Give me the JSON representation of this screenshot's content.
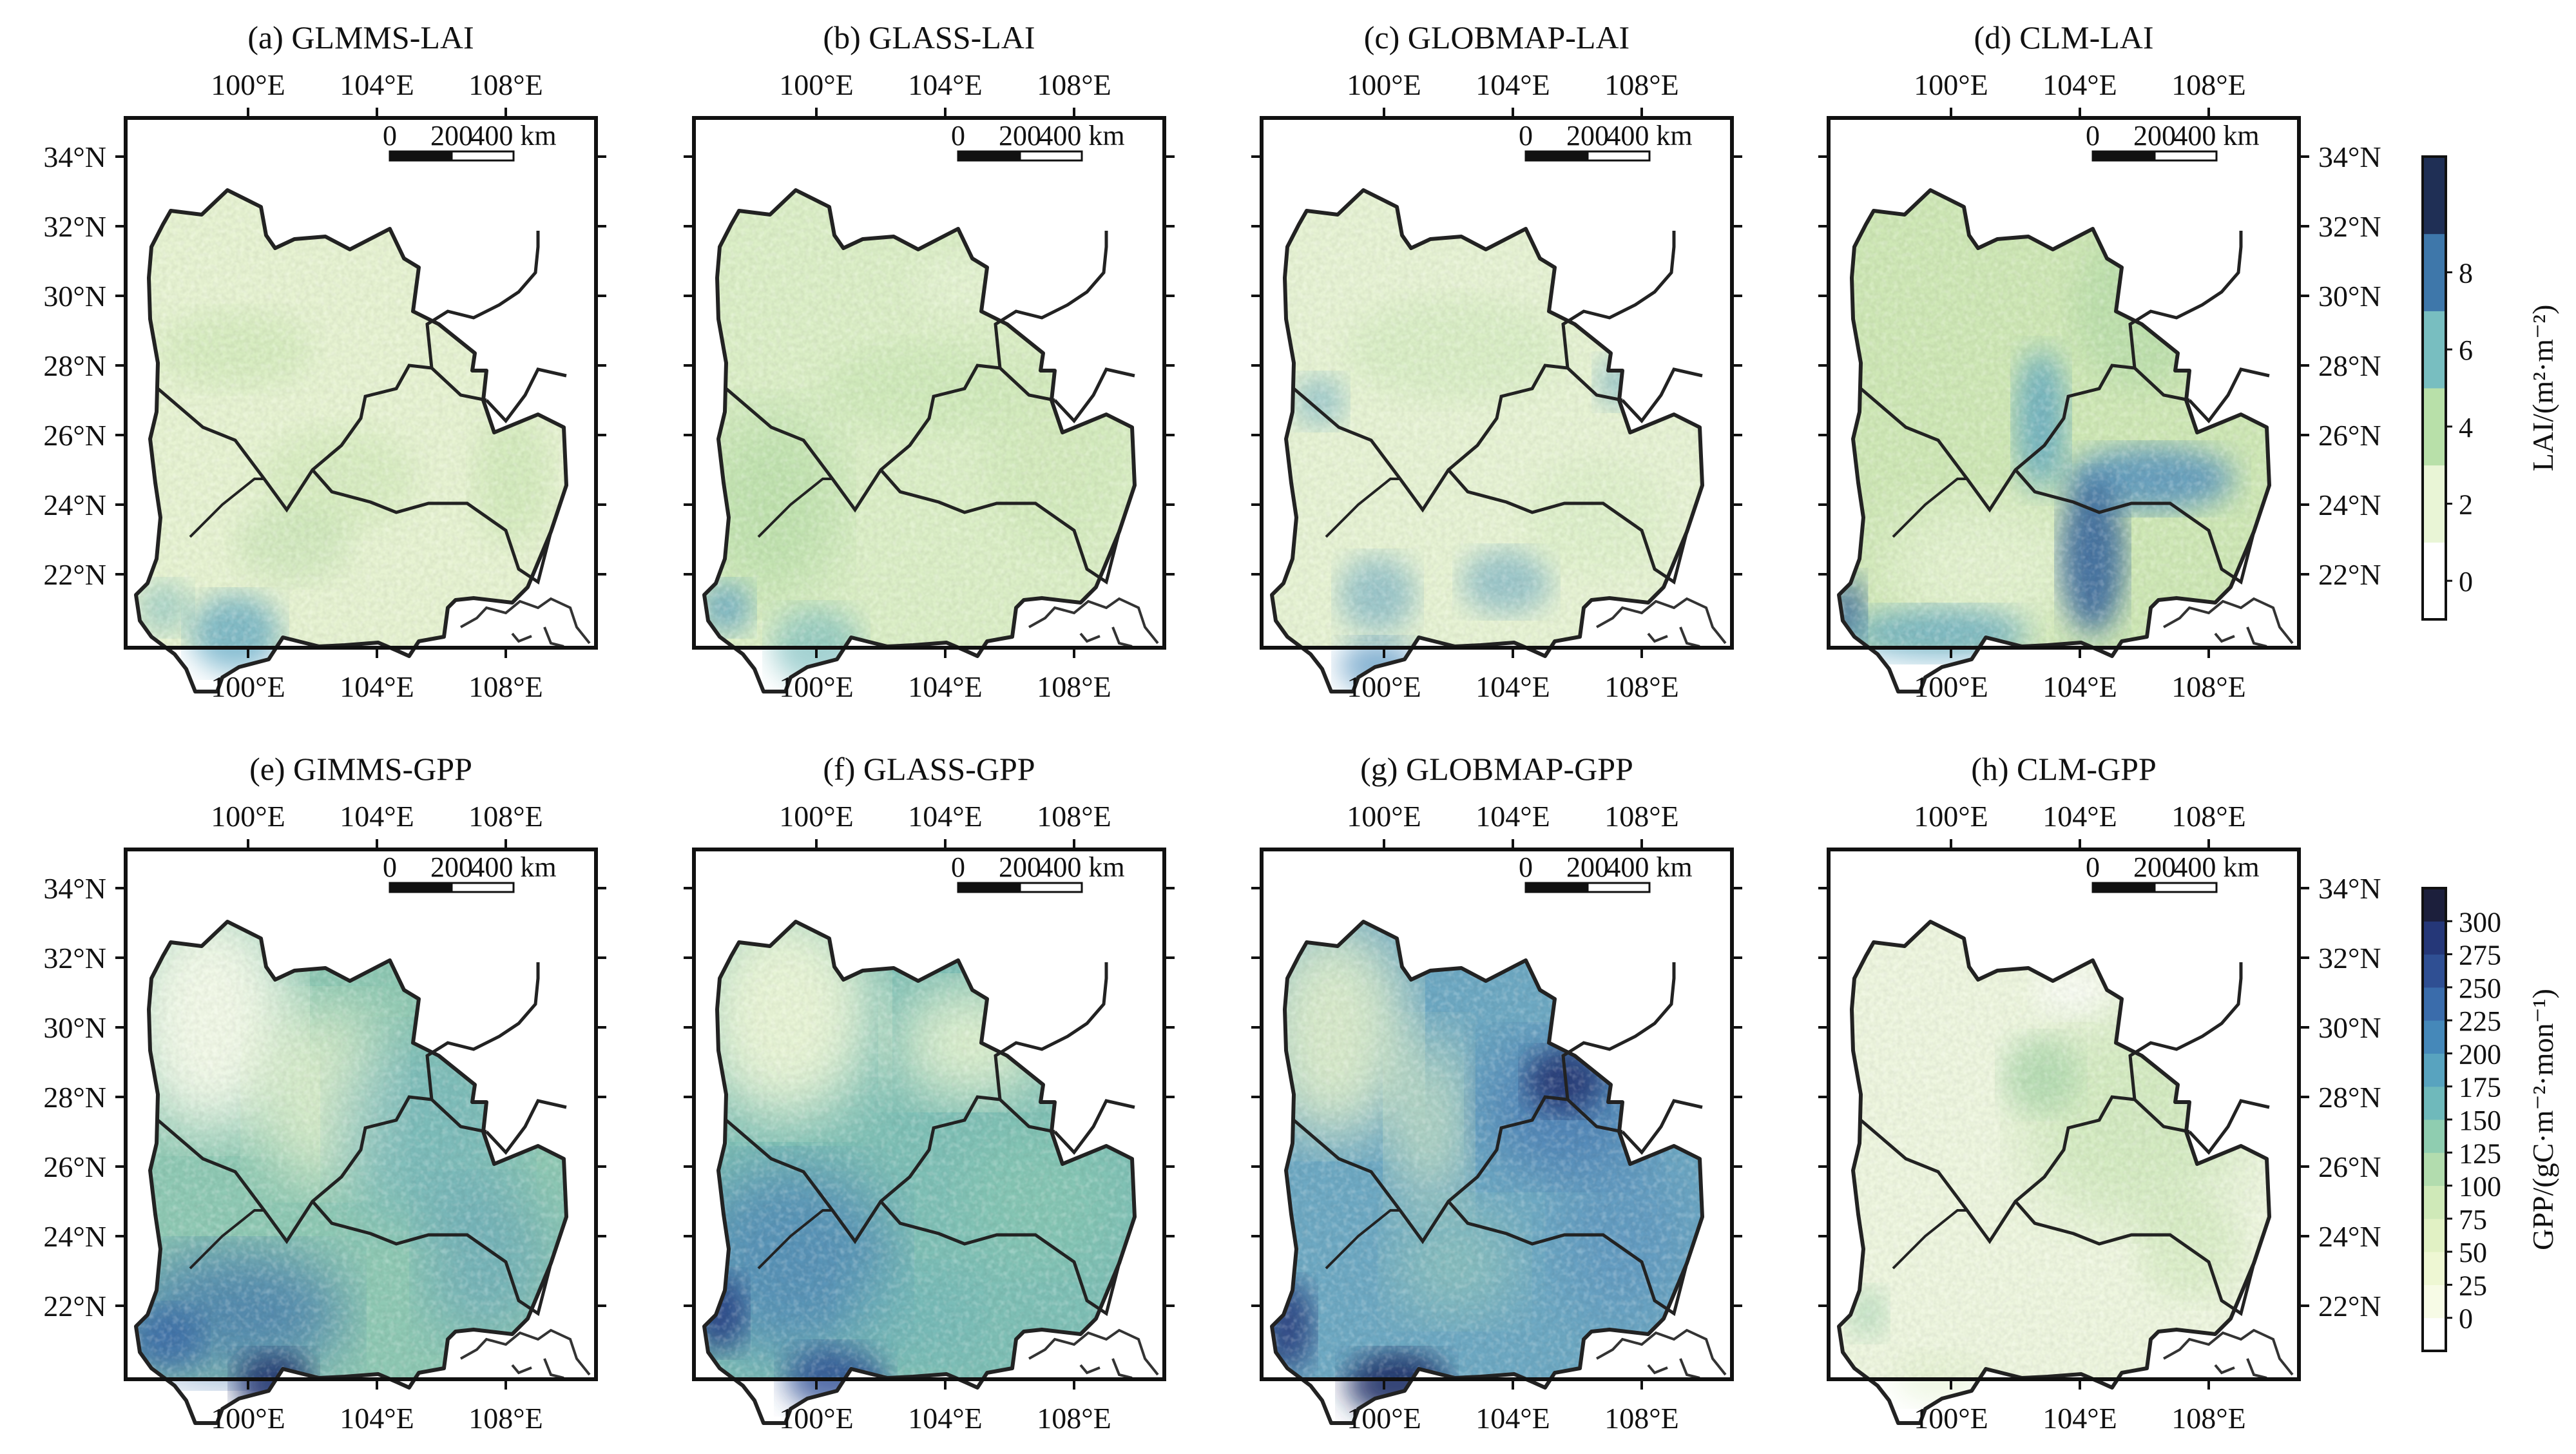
{
  "figure": {
    "rows": [
      {
        "id": "lai",
        "panels": [
          {
            "title": "(a) GLMMS-LAI",
            "style": "a"
          },
          {
            "title": "(b) GLASS-LAI",
            "style": "b"
          },
          {
            "title": "(c) GLOBMAP-LAI",
            "style": "c"
          },
          {
            "title": "(d) CLM-LAI",
            "style": "d"
          }
        ],
        "colorbar": {
          "label": "LAI/(m²·m⁻²)",
          "ticks": [
            "0",
            "2",
            "4",
            "6",
            "8"
          ],
          "colors": [
            "#ffffff",
            "#e9f5d6",
            "#b8e0a9",
            "#78bec0",
            "#3e77aa",
            "#1f2f55"
          ]
        }
      },
      {
        "id": "gpp",
        "panels": [
          {
            "title": "(e) GIMMS-GPP",
            "style": "e"
          },
          {
            "title": "(f) GLASS-GPP",
            "style": "f"
          },
          {
            "title": "(g) GLOBMAP-GPP",
            "style": "g"
          },
          {
            "title": "(h) CLM-GPP",
            "style": "h"
          }
        ],
        "colorbar": {
          "label": "GPP/(gC·m⁻²·mon⁻¹)",
          "ticks": [
            "0",
            "25",
            "50",
            "75",
            "100",
            "125",
            "150",
            "175",
            "200",
            "225",
            "250",
            "275",
            "300"
          ],
          "colors": [
            "#ffffff",
            "#f7fbe6",
            "#eef7d3",
            "#e1f1c4",
            "#cfe9b8",
            "#b2dcae",
            "#8fcdb0",
            "#6fb9bb",
            "#58a3bf",
            "#4588b9",
            "#3a6cab",
            "#2f4f93",
            "#253778",
            "#1c1f3c"
          ]
        }
      }
    ],
    "axes": {
      "lon_ticks": [
        "100°E",
        "104°E",
        "108°E"
      ],
      "lat_ticks": [
        "34°N",
        "32°N",
        "30°N",
        "28°N",
        "26°N",
        "24°N",
        "22°N"
      ]
    },
    "scalebar": {
      "labels": [
        "0",
        "200",
        "400 km"
      ]
    },
    "colors": {
      "boundary": "#222222",
      "frame": "#111111",
      "background": "#ffffff"
    }
  }
}
